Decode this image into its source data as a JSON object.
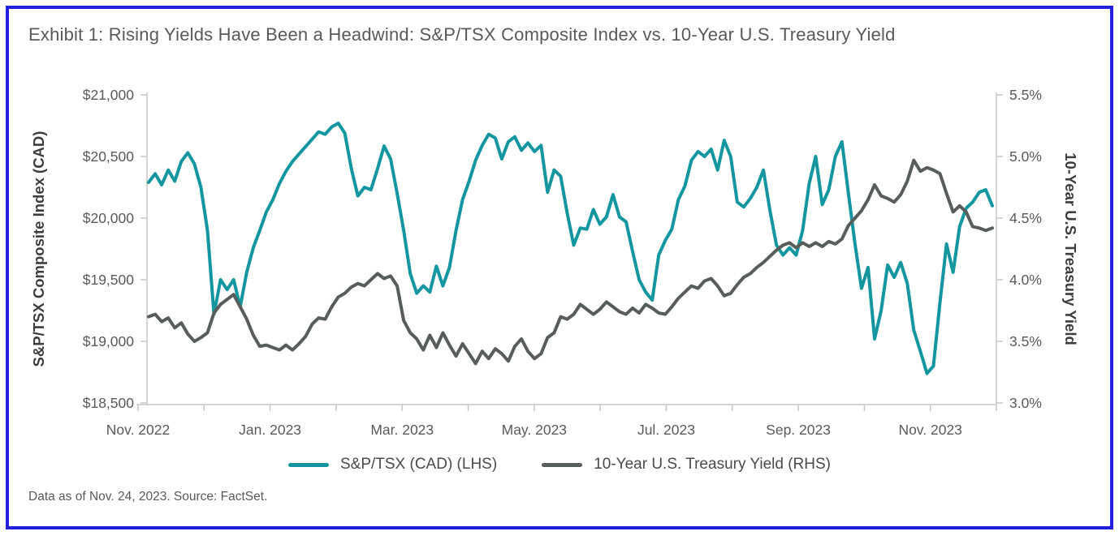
{
  "title": "Exhibit 1: Rising Yields Have Been a Headwind: S&P/TSX Composite Index vs. 10-Year U.S. Treasury Yield",
  "footer": "Data as of Nov. 24, 2023. Source: FactSet.",
  "colors": {
    "teal_series": "#1496A1",
    "gray_series": "#575D5A",
    "frame_border": "#2121DC",
    "axis_line": "#C6C6C6",
    "tick_text": "#595959"
  },
  "chart_data": {
    "type": "line",
    "title": "Exhibit 1: Rising Yields Have Been a Headwind: S&P/TSX Composite Index vs. 10-Year U.S. Treasury Yield",
    "grid": "off",
    "legend_position": "bottom",
    "left_axis": {
      "label": "S&P/TSX Composite Index (CAD)",
      "min": 18500,
      "max": 21000,
      "step": 500,
      "tick_labels": [
        "$21,000",
        "$20,500",
        "$20,000",
        "$19,500",
        "$19,000",
        "$18,500"
      ]
    },
    "right_axis": {
      "label": "10-Year U.S. Treasury Yield",
      "min": 3.0,
      "max": 5.5,
      "step": 0.5,
      "tick_labels": [
        "5.5%",
        "5.0%",
        "4.5%",
        "4.0%",
        "3.5%",
        "3.0%"
      ]
    },
    "x_axis": {
      "tick_labels": [
        "Nov. 2022",
        "Jan. 2023",
        "Mar. 2023",
        "May. 2023",
        "Jul. 2023",
        "Sep. 2023",
        "Nov. 2023"
      ],
      "minor_ticks_between_labels": 2
    },
    "series": [
      {
        "name": "S&P/TSX (CAD) (LHS)",
        "axis": "left",
        "color": "#1496A1",
        "values": [
          20290,
          20360,
          20270,
          20390,
          20300,
          20460,
          20530,
          20440,
          20250,
          19900,
          19220,
          19500,
          19420,
          19500,
          19280,
          19560,
          19760,
          19900,
          20050,
          20150,
          20280,
          20380,
          20460,
          20520,
          20580,
          20640,
          20700,
          20680,
          20740,
          20770,
          20690,
          20400,
          20180,
          20250,
          20230,
          20400,
          20585,
          20480,
          20200,
          19900,
          19550,
          19390,
          19450,
          19400,
          19610,
          19450,
          19600,
          19900,
          20150,
          20300,
          20470,
          20590,
          20680,
          20650,
          20480,
          20620,
          20660,
          20550,
          20610,
          20540,
          20590,
          20210,
          20390,
          20340,
          20040,
          19780,
          19920,
          19910,
          20070,
          19950,
          20010,
          20190,
          20010,
          19970,
          19730,
          19500,
          19400,
          19335,
          19700,
          19820,
          19910,
          20150,
          20260,
          20470,
          20540,
          20500,
          20560,
          20390,
          20630,
          20500,
          20130,
          20090,
          20160,
          20250,
          20390,
          20060,
          19780,
          19700,
          19760,
          19700,
          19900,
          20280,
          20500,
          20110,
          20230,
          20500,
          20620,
          20200,
          19790,
          19430,
          19600,
          19020,
          19250,
          19620,
          19520,
          19640,
          19470,
          19090,
          18920,
          18740,
          18800,
          19320,
          19790,
          19560,
          19930,
          20080,
          20130,
          20210,
          20230,
          20100
        ]
      },
      {
        "name": "10-Year U.S. Treasury Yield (RHS)",
        "axis": "right",
        "color": "#575D5A",
        "values": [
          3.7,
          3.72,
          3.66,
          3.69,
          3.61,
          3.65,
          3.56,
          3.5,
          3.53,
          3.57,
          3.73,
          3.8,
          3.84,
          3.88,
          3.78,
          3.68,
          3.55,
          3.46,
          3.47,
          3.45,
          3.43,
          3.47,
          3.43,
          3.48,
          3.54,
          3.64,
          3.69,
          3.68,
          3.78,
          3.86,
          3.89,
          3.94,
          3.97,
          3.95,
          4.0,
          4.05,
          4.01,
          4.03,
          3.95,
          3.67,
          3.57,
          3.52,
          3.43,
          3.55,
          3.45,
          3.57,
          3.47,
          3.38,
          3.48,
          3.4,
          3.32,
          3.42,
          3.36,
          3.44,
          3.4,
          3.34,
          3.46,
          3.52,
          3.42,
          3.36,
          3.4,
          3.53,
          3.57,
          3.7,
          3.68,
          3.72,
          3.8,
          3.76,
          3.72,
          3.76,
          3.82,
          3.78,
          3.74,
          3.72,
          3.77,
          3.73,
          3.8,
          3.77,
          3.73,
          3.72,
          3.78,
          3.85,
          3.9,
          3.95,
          3.93,
          3.99,
          4.01,
          3.95,
          3.87,
          3.89,
          3.96,
          4.02,
          4.05,
          4.1,
          4.14,
          4.19,
          4.24,
          4.28,
          4.3,
          4.26,
          4.3,
          4.27,
          4.3,
          4.27,
          4.31,
          4.29,
          4.33,
          4.44,
          4.5,
          4.56,
          4.65,
          4.77,
          4.68,
          4.66,
          4.63,
          4.69,
          4.8,
          4.97,
          4.88,
          4.91,
          4.89,
          4.86,
          4.7,
          4.55,
          4.6,
          4.55,
          4.43,
          4.42,
          4.4,
          4.42
        ]
      }
    ]
  }
}
